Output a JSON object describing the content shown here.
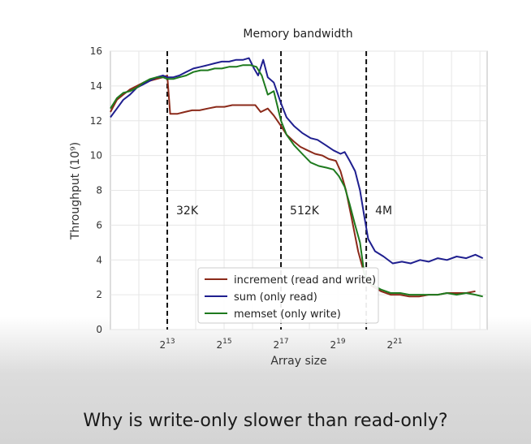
{
  "caption": "Why is write-only slower than read-only?",
  "chart_data": {
    "type": "line",
    "title": "Memory bandwidth",
    "xlabel": "Array size",
    "ylabel": "Throughput (10⁹)",
    "x_scale": "log2",
    "xlim": [
      2048,
      20000000
    ],
    "ylim": [
      0,
      16
    ],
    "y_ticks": [
      0,
      2,
      4,
      6,
      8,
      10,
      12,
      14,
      16
    ],
    "x_ticks": [
      {
        "value": 8192,
        "base": "2",
        "exp": "13"
      },
      {
        "value": 32768,
        "base": "2",
        "exp": "15"
      },
      {
        "value": 131072,
        "base": "2",
        "exp": "17"
      },
      {
        "value": 524288,
        "base": "2",
        "exp": "19"
      },
      {
        "value": 2097152,
        "base": "2",
        "exp": "21"
      }
    ],
    "grid": true,
    "legend_position": "bottom-center",
    "vlines": [
      {
        "x": 8192,
        "label": "32K"
      },
      {
        "x": 131072,
        "label": "512K"
      },
      {
        "x": 1048576,
        "label": "4M"
      }
    ],
    "series": [
      {
        "name": "increment (read and write)",
        "color": "#8b2a1a",
        "points": [
          [
            2048,
            12.5
          ],
          [
            2400,
            13.2
          ],
          [
            2800,
            13.5
          ],
          [
            3300,
            13.8
          ],
          [
            3900,
            14.0
          ],
          [
            4600,
            14.2
          ],
          [
            5400,
            14.3
          ],
          [
            6300,
            14.4
          ],
          [
            7400,
            14.5
          ],
          [
            8192,
            14.6
          ],
          [
            8800,
            12.4
          ],
          [
            10500,
            12.4
          ],
          [
            12500,
            12.5
          ],
          [
            15000,
            12.6
          ],
          [
            18000,
            12.6
          ],
          [
            22000,
            12.7
          ],
          [
            27000,
            12.8
          ],
          [
            33000,
            12.8
          ],
          [
            40000,
            12.9
          ],
          [
            50000,
            12.9
          ],
          [
            60000,
            12.9
          ],
          [
            70000,
            12.9
          ],
          [
            80000,
            12.5
          ],
          [
            95000,
            12.7
          ],
          [
            110000,
            12.3
          ],
          [
            131072,
            11.7
          ],
          [
            150000,
            11.2
          ],
          [
            180000,
            10.8
          ],
          [
            210000,
            10.5
          ],
          [
            250000,
            10.3
          ],
          [
            300000,
            10.1
          ],
          [
            360000,
            10.0
          ],
          [
            420000,
            9.8
          ],
          [
            500000,
            9.7
          ],
          [
            560000,
            9.1
          ],
          [
            640000,
            8.0
          ],
          [
            740000,
            6.3
          ],
          [
            860000,
            4.5
          ],
          [
            1000000,
            3.2
          ],
          [
            1200000,
            2.5
          ],
          [
            1500000,
            2.2
          ],
          [
            1900000,
            2.0
          ],
          [
            2400000,
            2.0
          ],
          [
            3000000,
            1.9
          ],
          [
            3800000,
            1.9
          ],
          [
            4800000,
            2.0
          ],
          [
            6000000,
            2.0
          ],
          [
            7500000,
            2.1
          ],
          [
            9500000,
            2.1
          ],
          [
            12000000,
            2.1
          ],
          [
            15000000,
            2.2
          ]
        ]
      },
      {
        "name": "sum (only read)",
        "color": "#1f1f8f",
        "points": [
          [
            2048,
            12.2
          ],
          [
            2400,
            12.7
          ],
          [
            2800,
            13.2
          ],
          [
            3300,
            13.5
          ],
          [
            3900,
            13.9
          ],
          [
            4600,
            14.1
          ],
          [
            5400,
            14.3
          ],
          [
            6300,
            14.5
          ],
          [
            7400,
            14.6
          ],
          [
            8192,
            14.5
          ],
          [
            9500,
            14.5
          ],
          [
            11000,
            14.6
          ],
          [
            13000,
            14.8
          ],
          [
            15500,
            15.0
          ],
          [
            18500,
            15.1
          ],
          [
            22000,
            15.2
          ],
          [
            26000,
            15.3
          ],
          [
            31000,
            15.4
          ],
          [
            37000,
            15.4
          ],
          [
            44000,
            15.5
          ],
          [
            52000,
            15.5
          ],
          [
            60000,
            15.6
          ],
          [
            68000,
            15.0
          ],
          [
            75000,
            14.6
          ],
          [
            85000,
            15.5
          ],
          [
            95000,
            14.5
          ],
          [
            110000,
            14.2
          ],
          [
            131072,
            13.0
          ],
          [
            150000,
            12.2
          ],
          [
            180000,
            11.7
          ],
          [
            220000,
            11.3
          ],
          [
            270000,
            11.0
          ],
          [
            320000,
            10.9
          ],
          [
            390000,
            10.6
          ],
          [
            470000,
            10.3
          ],
          [
            560000,
            10.1
          ],
          [
            620000,
            10.2
          ],
          [
            700000,
            9.7
          ],
          [
            800000,
            9.1
          ],
          [
            900000,
            8.0
          ],
          [
            1000000,
            6.5
          ],
          [
            1100000,
            5.2
          ],
          [
            1300000,
            4.5
          ],
          [
            1600000,
            4.2
          ],
          [
            2000000,
            3.8
          ],
          [
            2500000,
            3.9
          ],
          [
            3100000,
            3.8
          ],
          [
            3900000,
            4.0
          ],
          [
            4800000,
            3.9
          ],
          [
            6000000,
            4.1
          ],
          [
            7500000,
            4.0
          ],
          [
            9500000,
            4.2
          ],
          [
            12000000,
            4.1
          ],
          [
            15000000,
            4.3
          ],
          [
            18000000,
            4.1
          ]
        ]
      },
      {
        "name": "memset (only write)",
        "color": "#1e7a1e",
        "points": [
          [
            2048,
            12.7
          ],
          [
            2400,
            13.3
          ],
          [
            2800,
            13.6
          ],
          [
            3300,
            13.7
          ],
          [
            3900,
            13.9
          ],
          [
            4600,
            14.2
          ],
          [
            5400,
            14.4
          ],
          [
            6300,
            14.5
          ],
          [
            7400,
            14.5
          ],
          [
            8192,
            14.4
          ],
          [
            9500,
            14.4
          ],
          [
            11000,
            14.5
          ],
          [
            13000,
            14.6
          ],
          [
            15500,
            14.8
          ],
          [
            18500,
            14.9
          ],
          [
            22000,
            14.9
          ],
          [
            26000,
            15.0
          ],
          [
            31000,
            15.0
          ],
          [
            37000,
            15.1
          ],
          [
            44000,
            15.1
          ],
          [
            52000,
            15.2
          ],
          [
            62000,
            15.2
          ],
          [
            72000,
            15.1
          ],
          [
            82000,
            14.6
          ],
          [
            95000,
            13.5
          ],
          [
            110000,
            13.7
          ],
          [
            131072,
            12.0
          ],
          [
            150000,
            11.2
          ],
          [
            180000,
            10.6
          ],
          [
            220000,
            10.1
          ],
          [
            270000,
            9.6
          ],
          [
            330000,
            9.4
          ],
          [
            400000,
            9.3
          ],
          [
            470000,
            9.2
          ],
          [
            540000,
            8.8
          ],
          [
            620000,
            8.2
          ],
          [
            700000,
            7.2
          ],
          [
            800000,
            6.0
          ],
          [
            900000,
            5.0
          ],
          [
            1000000,
            3.2
          ],
          [
            1200000,
            2.6
          ],
          [
            1500000,
            2.3
          ],
          [
            1900000,
            2.1
          ],
          [
            2400000,
            2.1
          ],
          [
            3000000,
            2.0
          ],
          [
            3800000,
            2.0
          ],
          [
            4800000,
            2.0
          ],
          [
            6000000,
            2.0
          ],
          [
            7500000,
            2.1
          ],
          [
            9500000,
            2.0
          ],
          [
            12000000,
            2.1
          ],
          [
            15000000,
            2.0
          ],
          [
            18000000,
            1.9
          ]
        ]
      }
    ]
  }
}
